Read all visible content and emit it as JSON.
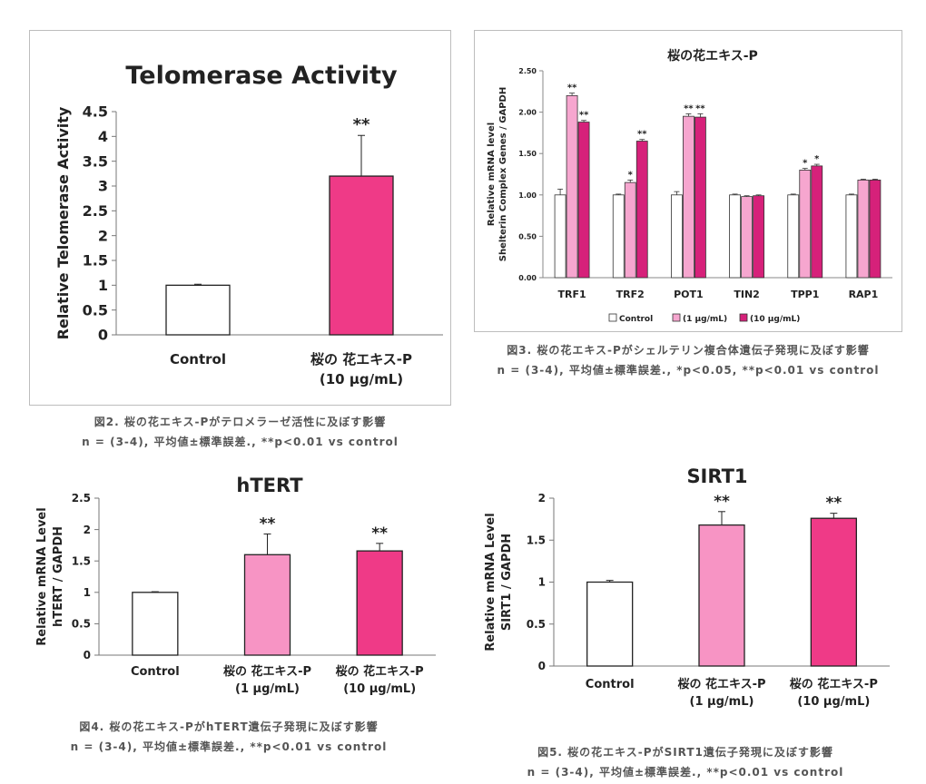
{
  "charts": [
    {
      "id": "telomerase",
      "chart_data": {
        "type": "bar",
        "title": "Telomerase Activity",
        "ylabel": "Relative Telomerase Activity",
        "xlabel": "",
        "ylim": [
          0,
          4.5
        ],
        "yticks": [
          "0",
          "0.5",
          "1",
          "1.5",
          "2",
          "2.5",
          "3",
          "3.5",
          "4",
          "4.5"
        ],
        "categories": [
          {
            "label": "Control",
            "sub": ""
          },
          {
            "label": "桜の 花エキス-P",
            "sub": "(10 μg/mL)"
          }
        ],
        "values": [
          1.0,
          3.2
        ],
        "errors": [
          0.02,
          0.82
        ],
        "annotations": [
          "",
          "**"
        ],
        "colors": [
          "#ffffff",
          "#ef3a87"
        ],
        "grid": false,
        "legend": "none"
      },
      "caption": {
        "line1": "図2. 桜の花エキス-Pがテロメラーゼ活性に及ぼす影響",
        "line2": "n = (3-4), 平均値±標準誤差., **p<0.01 vs control"
      }
    },
    {
      "id": "shelterin",
      "chart_data": {
        "type": "bar",
        "title": "桜の花エキス-P",
        "ylabel": "Relative mRNA level",
        "ylabel2": "Shelterin Complex Genes / GAPDH",
        "xlabel": "",
        "ylim": [
          0,
          2.5
        ],
        "yticks": [
          "0.00",
          "0.50",
          "1.00",
          "1.50",
          "2.00",
          "2.50"
        ],
        "categories": [
          "TRF1",
          "TRF2",
          "POT1",
          "TIN2",
          "TPP1",
          "RAP1"
        ],
        "series": [
          {
            "name": "Control",
            "color": "#ffffff",
            "values": [
              1.0,
              1.0,
              1.0,
              1.0,
              1.0,
              1.0
            ],
            "errors": [
              0.07,
              0.01,
              0.04,
              0.01,
              0.01,
              0.01
            ],
            "annotations": [
              "",
              "",
              "",
              "",
              "",
              ""
            ]
          },
          {
            "name": "(1 μg/mL)",
            "color": "#f6a6cf",
            "values": [
              2.2,
              1.15,
              1.95,
              0.98,
              1.3,
              1.18
            ],
            "errors": [
              0.03,
              0.03,
              0.03,
              0.01,
              0.02,
              0.01
            ],
            "annotations": [
              "**",
              "*",
              "**",
              "",
              "*",
              ""
            ]
          },
          {
            "name": "(10 μg/mL)",
            "color": "#d6217a",
            "values": [
              1.88,
              1.65,
              1.94,
              0.99,
              1.35,
              1.18
            ],
            "errors": [
              0.02,
              0.02,
              0.04,
              0.01,
              0.02,
              0.01
            ],
            "annotations": [
              "**",
              "**",
              "**",
              "",
              "*",
              ""
            ]
          }
        ],
        "grid": false,
        "legend": "bottom"
      },
      "caption": {
        "line1": "図3. 桜の花エキス-Pがシェルテリン複合体遺伝子発現に及ぼす影響",
        "line2": "n = (3-4), 平均値±標準誤差., *p<0.05, **p<0.01 vs control"
      }
    },
    {
      "id": "htert",
      "chart_data": {
        "type": "bar",
        "title": "hTERT",
        "ylabel": "Relative mRNA Level",
        "ylabel2": "hTERT / GAPDH",
        "xlabel": "",
        "ylim": [
          0,
          2.5
        ],
        "yticks": [
          "0",
          "0.5",
          "1",
          "1.5",
          "2",
          "2.5"
        ],
        "categories": [
          {
            "label": "Control",
            "sub": ""
          },
          {
            "label": "桜の 花エキス-P",
            "sub": "(1 μg/mL)"
          },
          {
            "label": "桜の 花エキス-P",
            "sub": "(10 μg/mL)"
          }
        ],
        "values": [
          1.0,
          1.6,
          1.66
        ],
        "errors": [
          0.01,
          0.33,
          0.12
        ],
        "annotations": [
          "",
          "**",
          "**"
        ],
        "colors": [
          "#ffffff",
          "#f794c4",
          "#ef3a87"
        ],
        "grid": false,
        "legend": "none"
      },
      "caption": {
        "line1": "図4. 桜の花エキス-PがhTERT遺伝子発現に及ぼす影響",
        "line2": "n = (3-4), 平均値±標準誤差., **p<0.01 vs control"
      }
    },
    {
      "id": "sirt1",
      "chart_data": {
        "type": "bar",
        "title": "SIRT1",
        "ylabel": "Relative mRNA Level",
        "ylabel2": "SIRT1 / GAPDH",
        "xlabel": "",
        "ylim": [
          0,
          2
        ],
        "yticks": [
          "0",
          "0.5",
          "1",
          "1.5",
          "2"
        ],
        "categories": [
          {
            "label": "Control",
            "sub": ""
          },
          {
            "label": "桜の 花エキス-P",
            "sub": "(1 μg/mL)"
          },
          {
            "label": "桜の 花エキス-P",
            "sub": "(10 μg/mL)"
          }
        ],
        "values": [
          1.0,
          1.68,
          1.76
        ],
        "errors": [
          0.02,
          0.16,
          0.06
        ],
        "annotations": [
          "",
          "**",
          "**"
        ],
        "colors": [
          "#ffffff",
          "#f794c4",
          "#ef3a87"
        ],
        "grid": false,
        "legend": "none"
      },
      "caption": {
        "line1": "図5. 桜の花エキス-PがSIRT1遺伝子発現に及ぼす影響",
        "line2": "n = (3-4), 平均値±標準誤差., **p<0.01 vs control"
      }
    }
  ]
}
